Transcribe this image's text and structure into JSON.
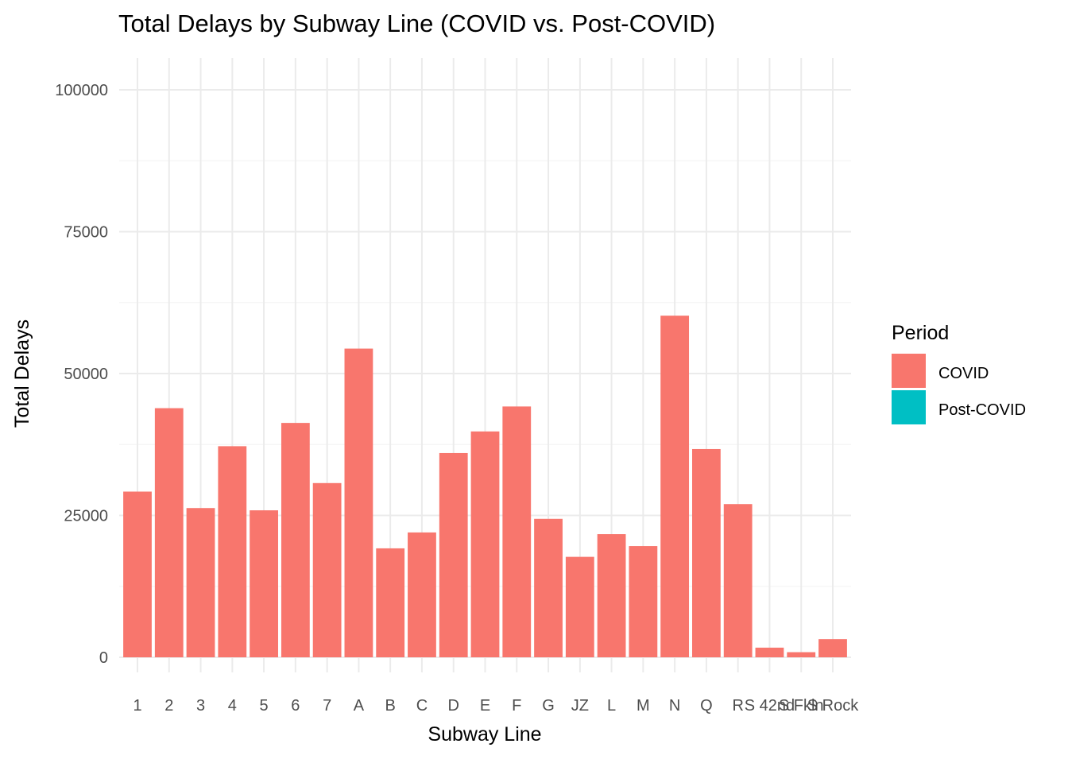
{
  "chart_data": {
    "type": "bar",
    "title": "Total Delays by Subway Line (COVID vs. Post-COVID)",
    "xlabel": "Subway Line",
    "ylabel": "Total Delays",
    "ylim": [
      0,
      105500
    ],
    "yticks": [
      0,
      25000,
      50000,
      75000,
      100000
    ],
    "grid": true,
    "legend": {
      "title": "Period",
      "position": "right",
      "entries": [
        {
          "label": "COVID",
          "color": "#F8766D"
        },
        {
          "label": "Post-COVID",
          "color": "#00BFC4"
        }
      ]
    },
    "categories": [
      "1",
      "2",
      "3",
      "4",
      "5",
      "6",
      "7",
      "A",
      "B",
      "C",
      "D",
      "E",
      "F",
      "G",
      "JZ",
      "L",
      "M",
      "N",
      "Q",
      "R",
      "S 42nd",
      "S Fkln",
      "S Rock"
    ],
    "series": [
      {
        "name": "COVID",
        "color": "#F8766D",
        "values": [
          29200,
          43900,
          26300,
          37200,
          25900,
          41300,
          30700,
          54400,
          19200,
          22000,
          36000,
          39800,
          44200,
          24400,
          17700,
          21700,
          19600,
          60200,
          36700,
          27000,
          1700,
          900,
          3200
        ]
      },
      {
        "name": "Post-COVID",
        "color": "#00BFC4",
        "values": [
          0,
          0,
          0,
          0,
          0,
          0,
          0,
          0,
          0,
          0,
          0,
          0,
          0,
          0,
          0,
          0,
          0,
          0,
          0,
          0,
          0,
          0,
          0
        ]
      }
    ]
  }
}
